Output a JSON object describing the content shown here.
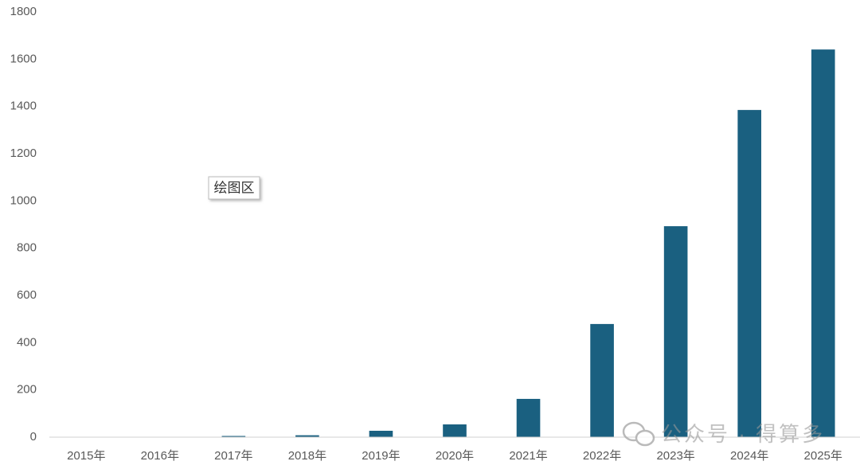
{
  "chart_data": {
    "type": "bar",
    "categories": [
      "2015年",
      "2016年",
      "2017年",
      "2018年",
      "2019年",
      "2020年",
      "2021年",
      "2022年",
      "2023年",
      "2024年",
      "2025年"
    ],
    "values": [
      0,
      0,
      5,
      8,
      27,
      54,
      162,
      479,
      893,
      1385,
      1641
    ],
    "color": "#1a6080",
    "ylim": [
      0,
      1800
    ],
    "yticks": [
      0,
      200,
      400,
      600,
      800,
      1000,
      1200,
      1400,
      1600,
      1800
    ],
    "grid": false,
    "tooltip": "绘图区",
    "watermark": "公众号 · 得算多"
  }
}
